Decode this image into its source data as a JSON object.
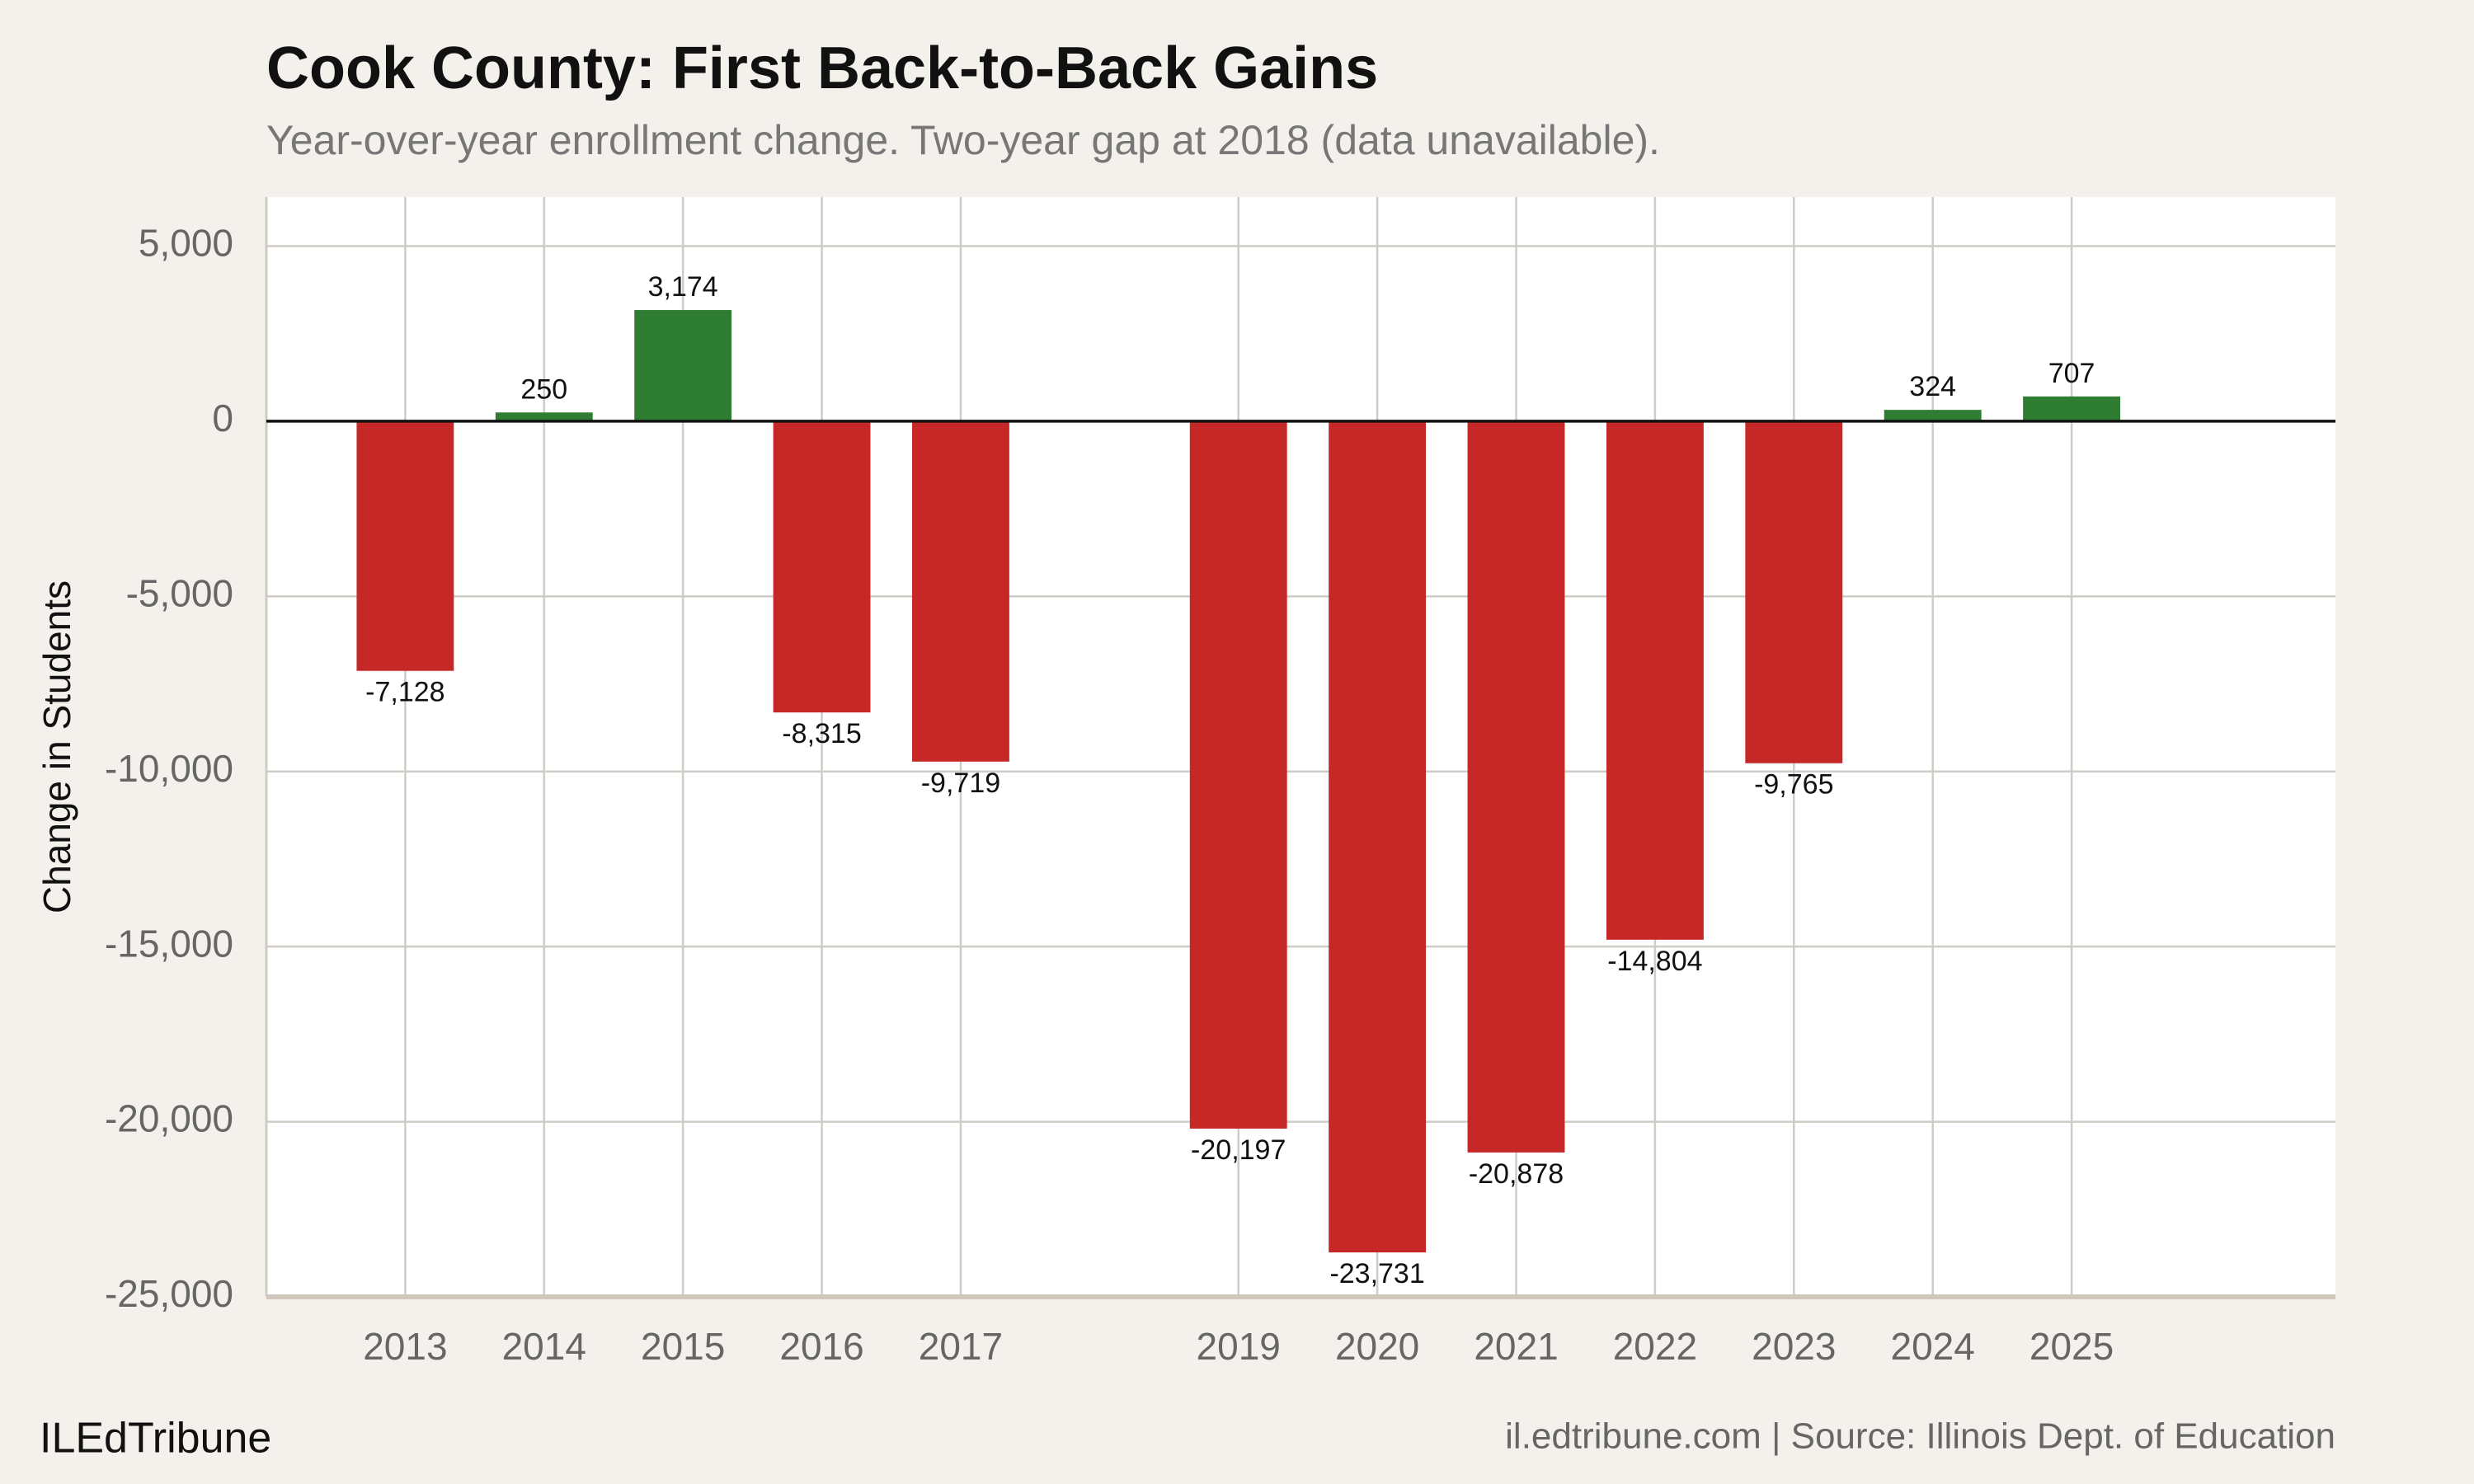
{
  "chart_data": {
    "type": "bar",
    "title": "Cook County: First Back-to-Back Gains",
    "subtitle": "Year-over-year enrollment change. Two-year gap at 2018 (data unavailable).",
    "ylabel": "Change in Students",
    "footer_left": "ILEdTribune",
    "footer_right": "il.edtribune.com | Source: Illinois Dept. of Education",
    "x": [
      2013,
      2014,
      2015,
      2016,
      2017,
      2019,
      2020,
      2021,
      2022,
      2023,
      2024,
      2025
    ],
    "values": [
      -7128,
      250,
      3174,
      -8315,
      -9719,
      -20197,
      -23731,
      -20878,
      -14804,
      -9765,
      324,
      707
    ],
    "value_labels": [
      "-7,128",
      "250",
      "3,174",
      "-8,315",
      "-9,719",
      "-20,197",
      "-23,731",
      "-20,878",
      "-14,804",
      "-9,765",
      "324",
      "707"
    ],
    "colors": [
      "#c62828",
      "#2e7d32",
      "#2e7d32",
      "#c62828",
      "#c62828",
      "#c62828",
      "#c62828",
      "#c62828",
      "#c62828",
      "#c62828",
      "#2e7d32",
      "#2e7d32"
    ],
    "xlim": [
      2012,
      2026.9
    ],
    "xticks": [
      2013,
      2014,
      2015,
      2016,
      2017,
      2019,
      2020,
      2021,
      2022,
      2023,
      2024,
      2025
    ],
    "ylim": [
      -25000,
      6400
    ],
    "yticks": [
      {
        "value": -25000,
        "label": "-25,000"
      },
      {
        "value": -20000,
        "label": "-20,000"
      },
      {
        "value": -15000,
        "label": "-15,000"
      },
      {
        "value": -10000,
        "label": "-10,000"
      },
      {
        "value": -5000,
        "label": "-5,000"
      },
      0,
      {
        "value": 5000,
        "label": "5,000"
      }
    ],
    "grid": true
  }
}
